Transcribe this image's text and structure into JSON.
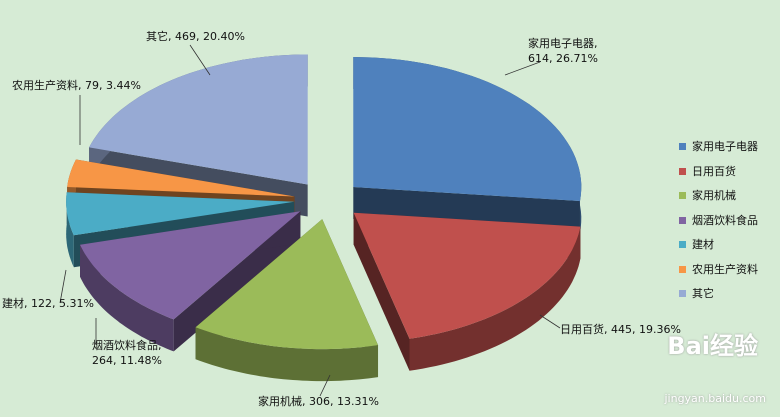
{
  "chart_data": {
    "type": "pie3d",
    "categories": [
      "家用电子电器",
      "日用百货",
      "家用机械",
      "烟酒饮料食品",
      "建材",
      "农用生产资料",
      "其它"
    ],
    "values": [
      614,
      445,
      306,
      264,
      122,
      79,
      469
    ],
    "value_labels": [
      "家用电子电器, 614, 26.71%",
      "日用百货, 445, 19.36%",
      "家用机械, 306, 13.31%",
      "烟酒饮料食品, 264, 11.48%",
      "建材, 122, 5.31%",
      "农用生产资料, 79, 3.44%",
      "其它, 469, 20.40%"
    ],
    "colors": [
      "#4f81bd",
      "#c0504d",
      "#9bbb59",
      "#8064a2",
      "#4bacc6",
      "#f79646",
      "#97aad4"
    ],
    "legend": "right"
  },
  "watermark": {
    "brand": "Bai经验",
    "url": "jingyan.baidu.com"
  }
}
